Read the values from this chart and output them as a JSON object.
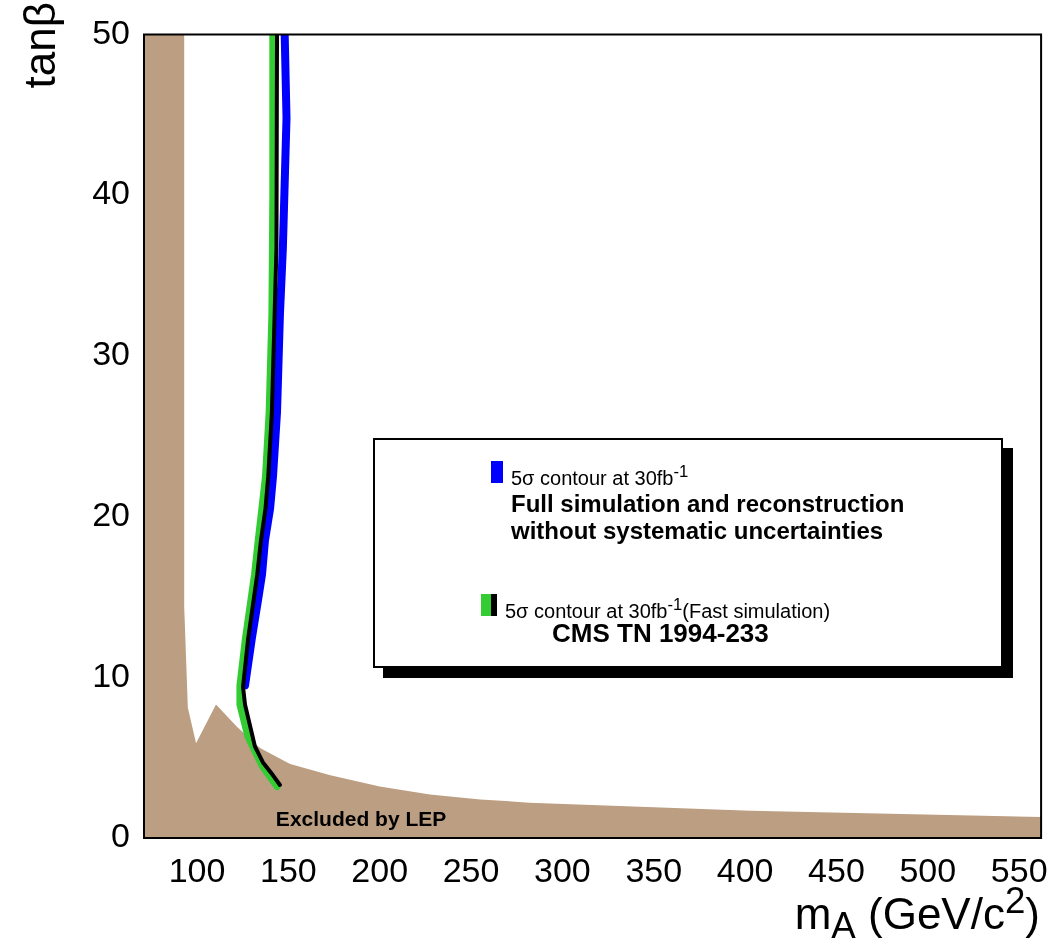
{
  "chart_data": {
    "type": "line",
    "xlabel": "m$_{A}$ (GeV/c$^{2}$)",
    "ylabel": "tanβ",
    "xlim": [
      71,
      562
    ],
    "xticks": [
      100,
      150,
      200,
      250,
      300,
      350,
      400,
      450,
      500,
      550
    ],
    "ylim": [
      0,
      50
    ],
    "yticks": [
      0,
      10,
      20,
      30,
      40,
      50
    ],
    "grid": false,
    "legend": "right",
    "marker": "none",
    "line_style": "solid",
    "annotations": [
      "CMS TN  1994-233"
    ],
    "series": [
      {
        "name": "Excluded by LEP",
        "type": "area",
        "color": "#bc9e82",
        "x": [
          71,
          93,
          93,
          95,
          99.5,
          110.4,
          122,
          134.5,
          151,
          173,
          200,
          227.5,
          255,
          282,
          403,
          562
        ],
        "values": [
          50,
          50,
          14.4,
          8.1,
          5.9,
          8.3,
          6.9,
          5.6,
          4.6,
          3.9,
          3.2,
          2.7,
          2.4,
          2.2,
          1.7,
          1.3
        ]
      },
      {
        "name": "5σ contour at 30fb$^{-1}$\nFull simulation and reconstruction\nwithout systematic uncertainties",
        "color": "#0000ff",
        "x": [
          148,
          149,
          147,
          145.4,
          143.8,
          141.6,
          140,
          137.2,
          135.6,
          133.4,
          130,
          126.3
        ],
        "values": [
          50,
          44.8,
          36.7,
          32.6,
          26.5,
          22.5,
          20.5,
          18.5,
          16.4,
          14.8,
          12.4,
          9.5
        ]
      },
      {
        "color": "#33cc33",
        "x": [
          141.5,
          141.5,
          141,
          139.5,
          137.5,
          135.5,
          133.5,
          131.5,
          129.5,
          126.5,
          123.5,
          123.5,
          127.9,
          135.6,
          143.8
        ],
        "values": [
          50,
          40,
          32.6,
          26.5,
          22.5,
          20.5,
          18.5,
          16.4,
          14.8,
          12.4,
          9.5,
          8.3,
          6.3,
          4.5,
          3.2
        ]
      },
      {
        "name": "5σ contour at 30fb$^{-1}$(Fast simulation)",
        "color": "#000000",
        "x": [
          143.8,
          143.5,
          142.5,
          141,
          139,
          137.5,
          135,
          133,
          131,
          128,
          125.2,
          126.3,
          131.7,
          136.1,
          141.6,
          145.4
        ],
        "values": [
          50,
          36.7,
          32.6,
          26.5,
          22.5,
          20.5,
          18.5,
          16.4,
          14.8,
          12.4,
          9.4,
          8.3,
          5.7,
          4.7,
          3.9,
          3.3
        ]
      }
    ]
  }
}
